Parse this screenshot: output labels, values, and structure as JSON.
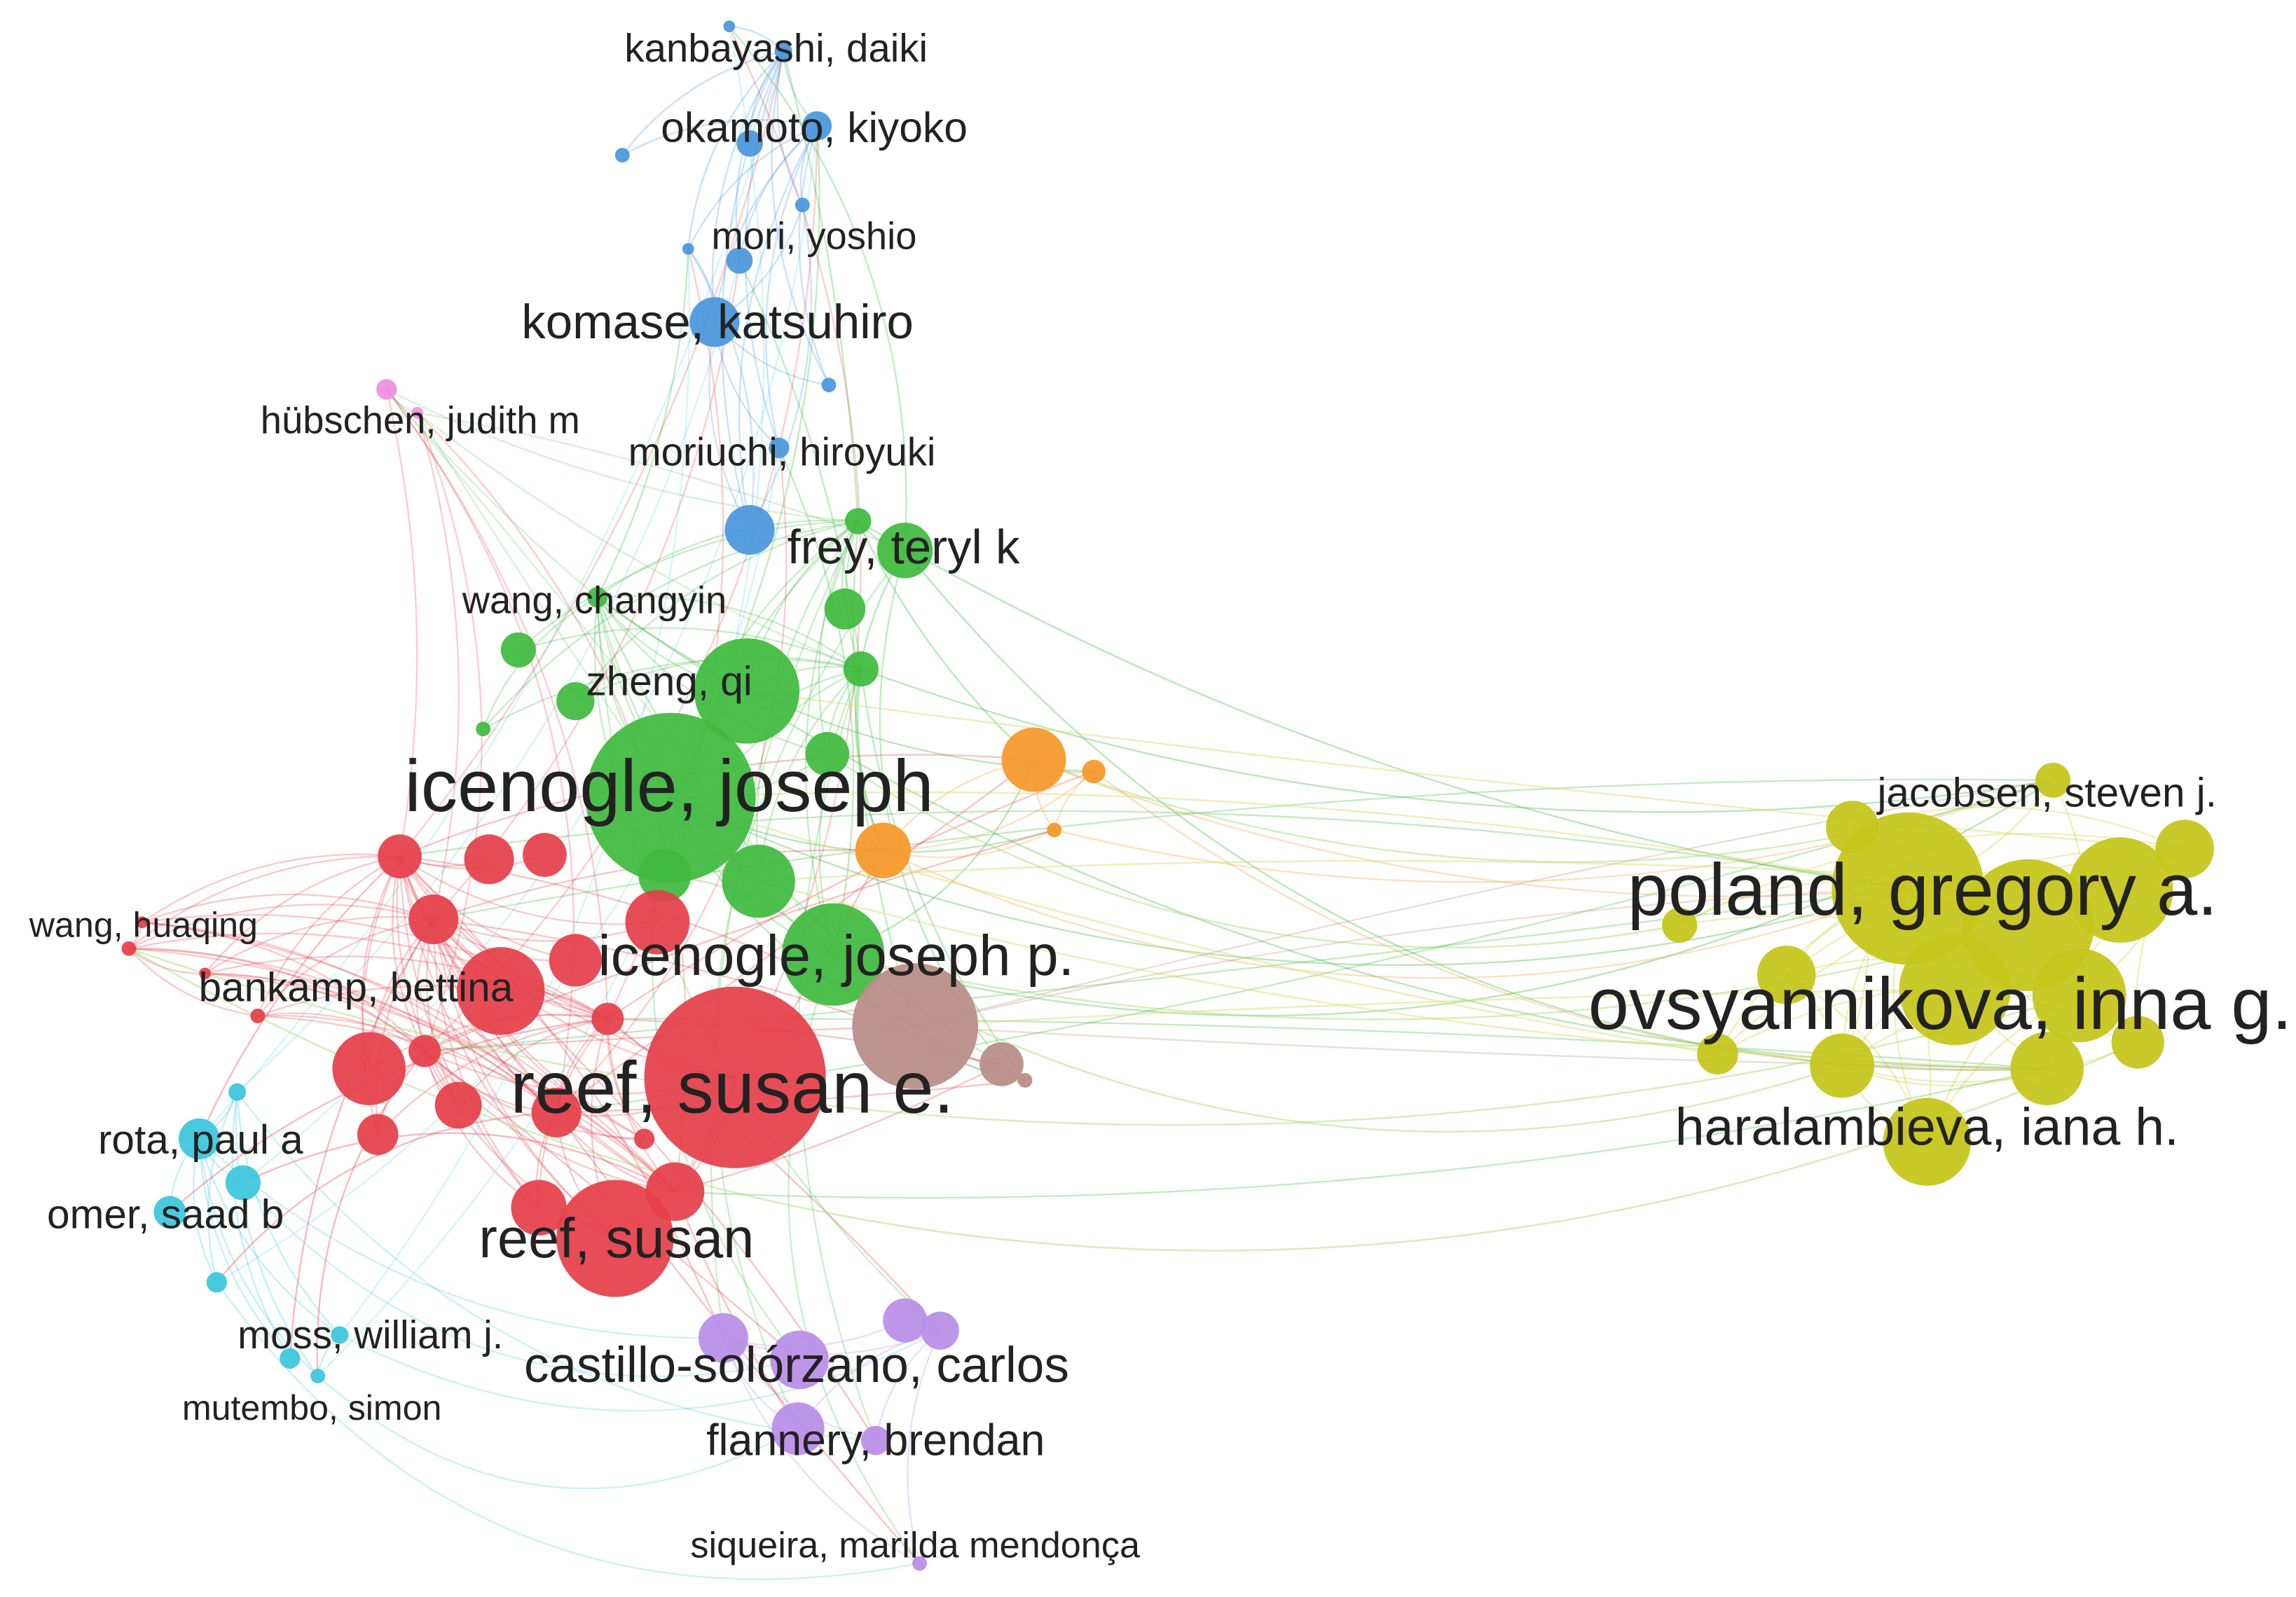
{
  "network": {
    "colors": {
      "red": "#e5404a",
      "green": "#3fba3f",
      "blue": "#4a97dd",
      "yellow": "#c5c51a",
      "orange": "#f5982a",
      "brown": "#b98d85",
      "purple": "#b88ee8",
      "cyan": "#3cc6dd",
      "pink": "#f08ee0"
    },
    "labels": [
      {
        "text": "kanbayashi, daiki",
        "cluster": "blue"
      },
      {
        "text": "okamoto, kiyoko",
        "cluster": "blue"
      },
      {
        "text": "mori, yoshio",
        "cluster": "blue"
      },
      {
        "text": "komase, katsuhiro",
        "cluster": "blue"
      },
      {
        "text": "hübschen, judith m",
        "cluster": "pink"
      },
      {
        "text": "moriuchi, hiroyuki",
        "cluster": "blue"
      },
      {
        "text": "frey, teryl k",
        "cluster": "green"
      },
      {
        "text": "wang, changyin",
        "cluster": "green"
      },
      {
        "text": "zheng, qi",
        "cluster": "green"
      },
      {
        "text": "icenogle, joseph",
        "cluster": "green"
      },
      {
        "text": "icenogle, joseph p.",
        "cluster": "green"
      },
      {
        "text": "wang, huaqing",
        "cluster": "red"
      },
      {
        "text": "bankamp, bettina",
        "cluster": "red"
      },
      {
        "text": "reef, susan e.",
        "cluster": "red"
      },
      {
        "text": "reef, susan",
        "cluster": "red"
      },
      {
        "text": "rota, paul a",
        "cluster": "cyan"
      },
      {
        "text": "omer, saad b",
        "cluster": "cyan"
      },
      {
        "text": "moss, william j.",
        "cluster": "cyan"
      },
      {
        "text": "mutembo, simon",
        "cluster": "cyan"
      },
      {
        "text": "castillo-solórzano, carlos",
        "cluster": "purple"
      },
      {
        "text": "flannery, brendan",
        "cluster": "purple"
      },
      {
        "text": "siqueira, marilda mendonça",
        "cluster": "purple"
      },
      {
        "text": "jacobsen, steven j.",
        "cluster": "yellow"
      },
      {
        "text": "poland, gregory a.",
        "cluster": "yellow"
      },
      {
        "text": "ovsyannikova, inna g.",
        "cluster": "yellow"
      },
      {
        "text": "haralambieva, iana h.",
        "cluster": "yellow"
      }
    ]
  }
}
